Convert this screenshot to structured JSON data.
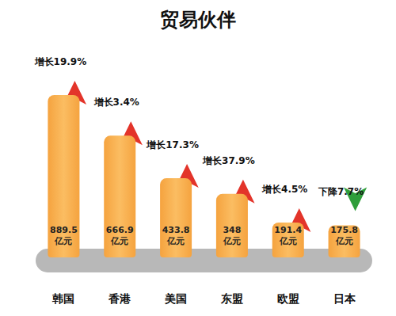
{
  "chart_data": {
    "type": "bar",
    "title": "贸易伙伴",
    "categories": [
      "韩国",
      "香港",
      "美国",
      "东盟",
      "欧盟",
      "日本"
    ],
    "values": [
      889.5,
      666.9,
      433.8,
      348,
      191.4,
      175.8
    ],
    "value_labels": [
      "889.5\n亿元",
      "666.9\n亿元",
      "433.8\n亿元",
      "348\n亿元",
      "191.4\n亿元",
      "175.8\n亿元"
    ],
    "data_labels": true,
    "color": "#f5a33f",
    "ylim": [
      0,
      1150
    ],
    "tick_labels": "x",
    "grid": false,
    "annotations": [
      {
        "text": "增长19.9%",
        "color": "#e3342a",
        "marker": "up"
      },
      {
        "text": "增长3.4%",
        "color": "#e3342a",
        "marker": "up"
      },
      {
        "text": "增长17.3%",
        "color": "#e3342a",
        "marker": "up"
      },
      {
        "text": "增长37.9%",
        "color": "#e3342a",
        "marker": "up"
      },
      {
        "text": "增长4.5%",
        "color": "#e3342a",
        "marker": "up"
      },
      {
        "text": "下降7.7%",
        "color": "#2f9e3a",
        "marker": "down"
      }
    ]
  }
}
